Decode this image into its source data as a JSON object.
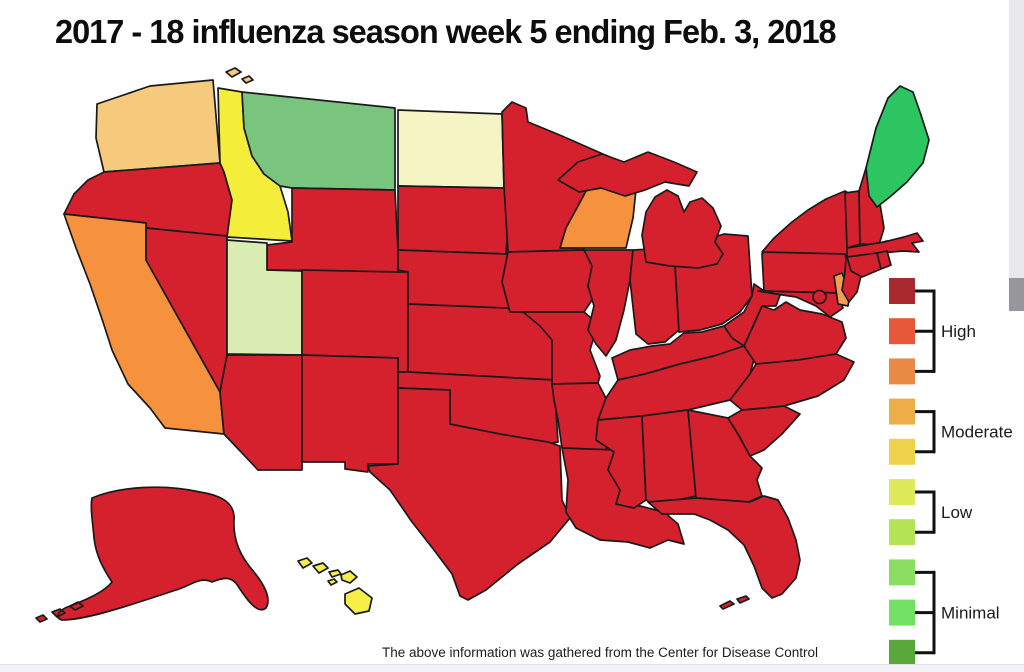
{
  "title": "2017 - 18 influenza season week 5 ending Feb. 3, 2018",
  "caption": "The above information was gathered from the Center for Disease Control",
  "colors": {
    "background": "#ffffff",
    "state_outline": "#1a1a1a",
    "high_red": "#d5202e"
  },
  "legend": {
    "groups": [
      {
        "label": "High",
        "colors": [
          "#a8292e",
          "#e65839",
          "#e88a43"
        ]
      },
      {
        "label": "Moderate",
        "colors": [
          "#edae4a",
          "#eed24c"
        ]
      },
      {
        "label": "Low",
        "colors": [
          "#dfea5a",
          "#b5e356"
        ]
      },
      {
        "label": "Minimal",
        "colors": [
          "#8adf63",
          "#72e163",
          "#5aa83a"
        ]
      }
    ]
  },
  "chart_data": {
    "type": "heatmap",
    "subtype": "us-choropleth",
    "title": "2017 - 18 influenza season week 5 ending Feb. 3, 2018",
    "legend_categories": [
      "High",
      "Moderate",
      "Low",
      "Minimal"
    ],
    "states": [
      {
        "id": "WA",
        "name": "Washington",
        "level": "moderate",
        "color": "#f5ca7d"
      },
      {
        "id": "OR",
        "name": "Oregon",
        "level": "high",
        "color": "#d5202e"
      },
      {
        "id": "CA",
        "name": "California",
        "level": "high",
        "color": "#f6913e"
      },
      {
        "id": "NV",
        "name": "Nevada",
        "level": "high",
        "color": "#d5202e"
      },
      {
        "id": "ID",
        "name": "Idaho",
        "level": "moderate",
        "color": "#f4ee3a"
      },
      {
        "id": "MT",
        "name": "Montana",
        "level": "minimal",
        "color": "#7ac57e"
      },
      {
        "id": "WY",
        "name": "Wyoming",
        "level": "high",
        "color": "#d5202e"
      },
      {
        "id": "UT",
        "name": "Utah",
        "level": "low",
        "color": "#d9edb3"
      },
      {
        "id": "CO",
        "name": "Colorado",
        "level": "high",
        "color": "#d5202e"
      },
      {
        "id": "AZ",
        "name": "Arizona",
        "level": "high",
        "color": "#d5202e"
      },
      {
        "id": "NM",
        "name": "New Mexico",
        "level": "high",
        "color": "#d5202e"
      },
      {
        "id": "ND",
        "name": "North Dakota",
        "level": "low",
        "color": "#f4f4c5"
      },
      {
        "id": "SD",
        "name": "South Dakota",
        "level": "high",
        "color": "#d5202e"
      },
      {
        "id": "NE",
        "name": "Nebraska",
        "level": "high",
        "color": "#d5202e"
      },
      {
        "id": "KS",
        "name": "Kansas",
        "level": "high",
        "color": "#d5202e"
      },
      {
        "id": "OK",
        "name": "Oklahoma",
        "level": "high",
        "color": "#d5202e"
      },
      {
        "id": "TX",
        "name": "Texas",
        "level": "high",
        "color": "#d5202e"
      },
      {
        "id": "MN",
        "name": "Minnesota",
        "level": "high",
        "color": "#d5202e"
      },
      {
        "id": "IA",
        "name": "Iowa",
        "level": "high",
        "color": "#d5202e"
      },
      {
        "id": "MO",
        "name": "Missouri",
        "level": "high",
        "color": "#d5202e"
      },
      {
        "id": "AR",
        "name": "Arkansas",
        "level": "high",
        "color": "#d5202e"
      },
      {
        "id": "LA",
        "name": "Louisiana",
        "level": "high",
        "color": "#d5202e"
      },
      {
        "id": "WI",
        "name": "Wisconsin",
        "level": "high",
        "color": "#f6913e"
      },
      {
        "id": "IL",
        "name": "Illinois",
        "level": "high",
        "color": "#d5202e"
      },
      {
        "id": "IN",
        "name": "Indiana",
        "level": "high",
        "color": "#d5202e"
      },
      {
        "id": "OH",
        "name": "Ohio",
        "level": "high",
        "color": "#d5202e"
      },
      {
        "id": "MI",
        "name": "Michigan",
        "level": "high",
        "color": "#d5202e"
      },
      {
        "id": "KY",
        "name": "Kentucky",
        "level": "high",
        "color": "#d5202e"
      },
      {
        "id": "TN",
        "name": "Tennessee",
        "level": "high",
        "color": "#d5202e"
      },
      {
        "id": "MS",
        "name": "Mississippi",
        "level": "high",
        "color": "#d5202e"
      },
      {
        "id": "AL",
        "name": "Alabama",
        "level": "high",
        "color": "#d5202e"
      },
      {
        "id": "GA",
        "name": "Georgia",
        "level": "high",
        "color": "#d5202e"
      },
      {
        "id": "FL",
        "name": "Florida",
        "level": "high",
        "color": "#d5202e"
      },
      {
        "id": "SC",
        "name": "South Carolina",
        "level": "high",
        "color": "#d5202e"
      },
      {
        "id": "NC",
        "name": "North Carolina",
        "level": "high",
        "color": "#d5202e"
      },
      {
        "id": "VA",
        "name": "Virginia",
        "level": "high",
        "color": "#d5202e"
      },
      {
        "id": "WV",
        "name": "West Virginia",
        "level": "high",
        "color": "#d5202e"
      },
      {
        "id": "PA",
        "name": "Pennsylvania",
        "level": "high",
        "color": "#d5202e"
      },
      {
        "id": "NY",
        "name": "New York",
        "level": "high",
        "color": "#d5202e"
      },
      {
        "id": "MD",
        "name": "Maryland",
        "level": "high",
        "color": "#d5202e"
      },
      {
        "id": "DE",
        "name": "Delaware",
        "level": "high",
        "color": "#f2a050"
      },
      {
        "id": "NJ",
        "name": "New Jersey",
        "level": "high",
        "color": "#d5202e"
      },
      {
        "id": "VT",
        "name": "Vermont",
        "level": "high",
        "color": "#d5202e"
      },
      {
        "id": "NH",
        "name": "New Hampshire",
        "level": "high",
        "color": "#d5202e"
      },
      {
        "id": "MA",
        "name": "Massachusetts",
        "level": "high",
        "color": "#d5202e"
      },
      {
        "id": "CT",
        "name": "Connecticut",
        "level": "high",
        "color": "#d5202e"
      },
      {
        "id": "RI",
        "name": "Rhode Island",
        "level": "high",
        "color": "#d5202e"
      },
      {
        "id": "ME",
        "name": "Maine",
        "level": "minimal",
        "color": "#2cc561"
      },
      {
        "id": "AK",
        "name": "Alaska",
        "level": "high",
        "color": "#d5202e"
      },
      {
        "id": "HI",
        "name": "Hawaii",
        "level": "moderate",
        "color": "#f6ef49"
      },
      {
        "id": "DC",
        "name": "District of Columbia",
        "level": "high",
        "color": "#d5202e"
      }
    ]
  }
}
